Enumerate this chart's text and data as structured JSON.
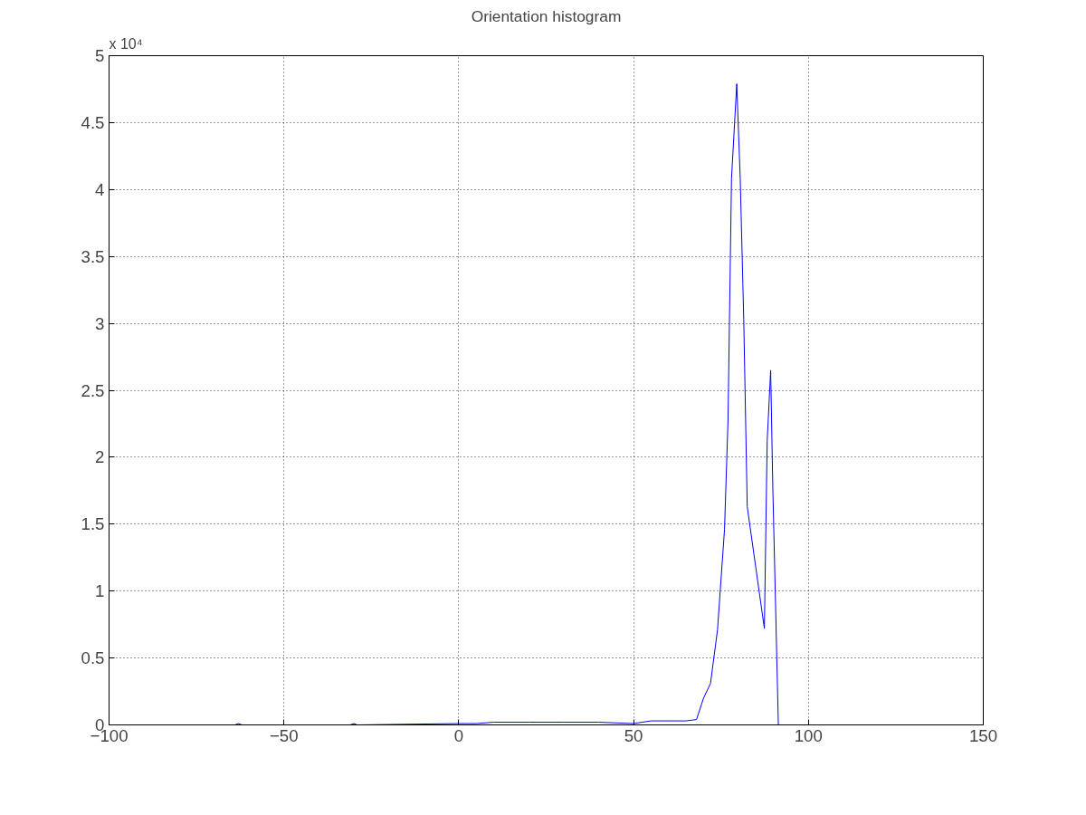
{
  "chart_data": {
    "type": "line",
    "title": "Orientation histogram",
    "annotations": [
      "x 10⁴"
    ],
    "x": [
      -64,
      -63,
      -62,
      -31,
      -30,
      -29,
      0,
      5,
      10,
      20,
      30,
      40,
      50,
      55,
      60,
      65,
      68,
      70,
      72,
      74,
      76,
      77,
      78,
      79.5,
      80.5,
      81.5,
      82.5,
      87.4,
      88.2,
      89.2,
      89.8,
      91.4
    ],
    "series": [
      {
        "color": "#0000ff",
        "values": [
          0,
          0.01,
          0,
          0,
          0.01,
          0,
          0.01,
          0.01,
          0.02,
          0.02,
          0.02,
          0.02,
          0.01,
          0.03,
          0.03,
          0.03,
          0.04,
          0.2,
          0.31,
          0.71,
          1.46,
          2.27,
          4.08,
          4.79,
          4.08,
          3.03,
          1.63,
          0.72,
          2.12,
          2.65,
          1.79,
          0
        ]
      }
    ],
    "xlim": [
      -100,
      150
    ],
    "xticks": [
      -100,
      -50,
      0,
      50,
      100,
      150
    ],
    "ylim": [
      0,
      5
    ],
    "yticks": [
      0,
      0.5,
      1,
      1.5,
      2,
      2.5,
      3,
      3.5,
      4,
      4.5,
      5
    ],
    "grid": true,
    "line_style": "solid"
  }
}
